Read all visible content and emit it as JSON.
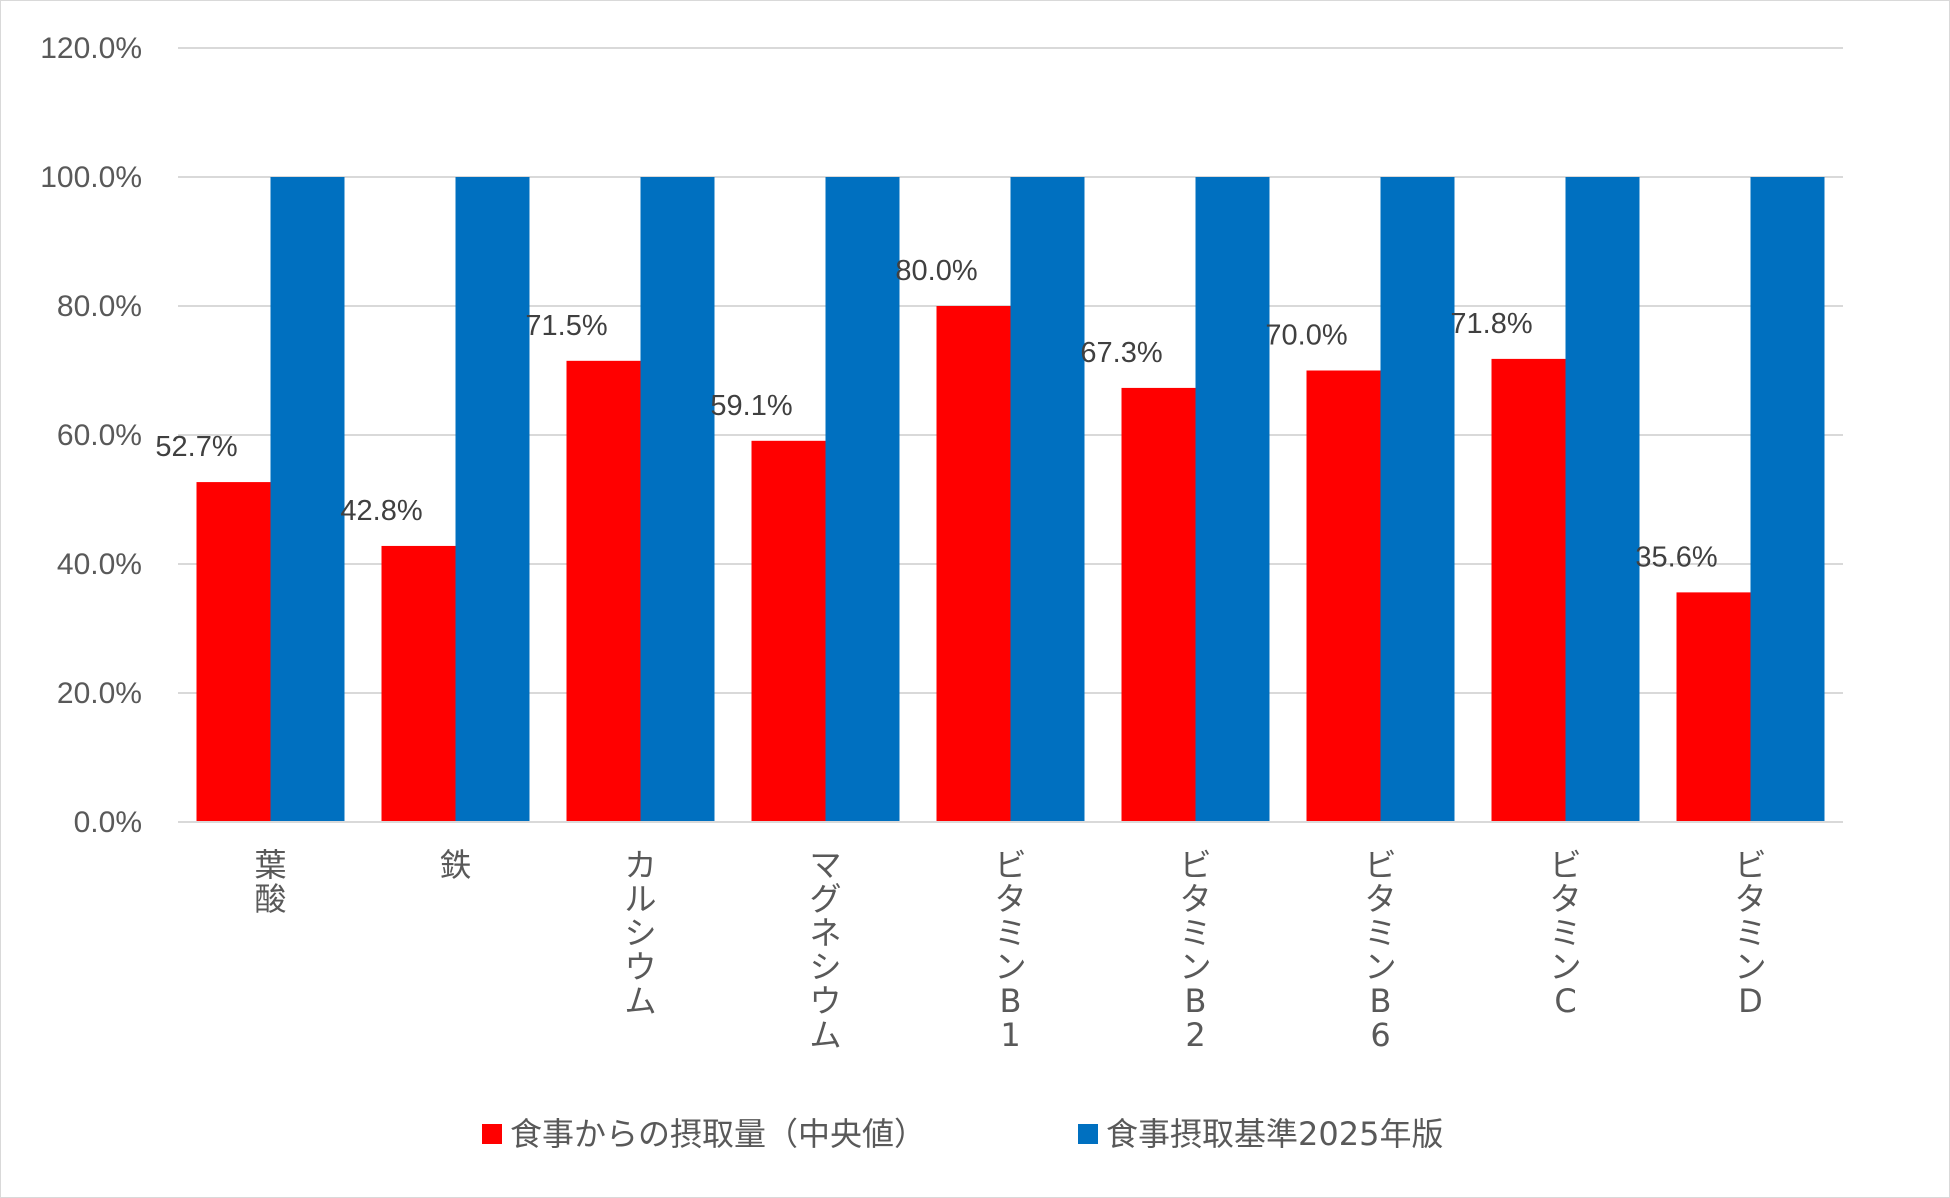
{
  "chart_data": {
    "type": "bar",
    "title": "",
    "xlabel": "",
    "ylabel": "",
    "ylim": [
      0,
      120
    ],
    "yticks": [
      "0.0%",
      "20.0%",
      "40.0%",
      "60.0%",
      "80.0%",
      "100.0%",
      "120.0%"
    ],
    "grid": true,
    "legend_position": "bottom",
    "categories": [
      "葉酸",
      "鉄",
      "カルシウム",
      "マグネシウム",
      "ビタミンB1",
      "ビタミンB2",
      "ビタミンB6",
      "ビタミンC",
      "ビタミンD"
    ],
    "series": [
      {
        "name": "食事からの摂取量（中央値）",
        "color": "#ff0000",
        "values": [
          52.7,
          42.8,
          71.5,
          59.1,
          80.0,
          67.3,
          70.0,
          71.8,
          35.6
        ],
        "data_labels": [
          "52.7%",
          "42.8%",
          "71.5%",
          "59.1%",
          "80.0%",
          "67.3%",
          "70.0%",
          "71.8%",
          "35.6%"
        ]
      },
      {
        "name": "食事摂取基準2025年版",
        "color": "#0070c0",
        "values": [
          100,
          100,
          100,
          100,
          100,
          100,
          100,
          100,
          100
        ]
      }
    ]
  }
}
